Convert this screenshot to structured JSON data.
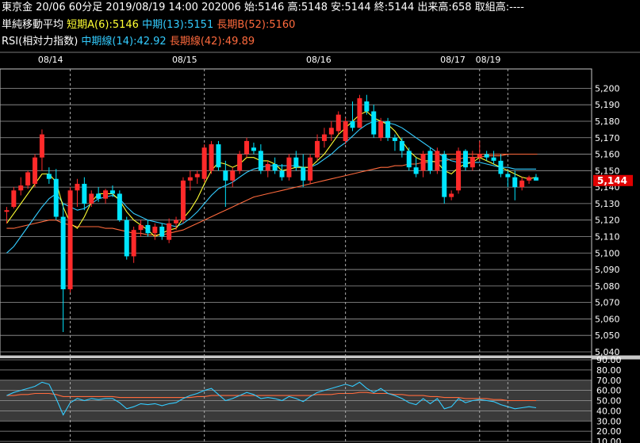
{
  "header": {
    "instrument": "東京金 20/06 60分足",
    "datetime": "2019/08/19 14:00",
    "contract": "202006",
    "open_label": "始:",
    "open": "5146",
    "high_label": "高:",
    "high": "5148",
    "low_label": "安:",
    "low": "5144",
    "close_label": "終:",
    "close": "5144",
    "volume_label": "出来高:",
    "volume": "658",
    "oi_label": "取組高:",
    "oi": "----"
  },
  "ma_legend": {
    "name": "単純移動平均",
    "short": "短期A(6):5146",
    "mid": "中期(13):5151",
    "long": "長期B(52):5160"
  },
  "rsi_legend": {
    "name": "RSI(相対力指数)",
    "mid": "中期線(14):42.92",
    "long": "長期線(42):49.89"
  },
  "colors": {
    "up": "#ff2a2a",
    "down": "#00e5ff",
    "short_ma": "#ffff33",
    "mid_ma": "#33ccff",
    "long_ma": "#ff6a3d",
    "price_tag": "#e00000"
  },
  "chart_data": [
    {
      "type": "candlestick",
      "title": "",
      "x_date_labels": [
        {
          "label": "08/14",
          "index": 6
        },
        {
          "label": "08/15",
          "index": 25
        },
        {
          "label": "08/16",
          "index": 44
        },
        {
          "label": "08/17",
          "index": 63
        },
        {
          "label": "08/19",
          "index": 68
        }
      ],
      "day_separators": [
        9,
        28,
        48,
        67,
        71
      ],
      "ylim": [
        5040,
        5205
      ],
      "y_ticks": [
        5040,
        5050,
        5060,
        5070,
        5080,
        5090,
        5100,
        5110,
        5120,
        5130,
        5140,
        5150,
        5160,
        5170,
        5180,
        5190,
        5200
      ],
      "y_tick_labels": [
        "5,040",
        "5,050",
        "5,060",
        "5,070",
        "5,080",
        "5,090",
        "5,100",
        "5,110",
        "5,120",
        "5,130",
        "5,140",
        "5,150",
        "5,160",
        "5,170",
        "5,180",
        "5,190",
        "5,200"
      ],
      "last_price_label": "5,144",
      "last_price": 5144,
      "candles": [
        {
          "o": 5125,
          "h": 5128,
          "l": 5118,
          "c": 5126
        },
        {
          "o": 5128,
          "h": 5140,
          "l": 5127,
          "c": 5138
        },
        {
          "o": 5138,
          "h": 5146,
          "l": 5135,
          "c": 5141
        },
        {
          "o": 5141,
          "h": 5150,
          "l": 5139,
          "c": 5149
        },
        {
          "o": 5142,
          "h": 5160,
          "l": 5140,
          "c": 5158
        },
        {
          "o": 5158,
          "h": 5175,
          "l": 5150,
          "c": 5172
        },
        {
          "o": 5148,
          "h": 5152,
          "l": 5142,
          "c": 5145
        },
        {
          "o": 5145,
          "h": 5151,
          "l": 5120,
          "c": 5122
        },
        {
          "o": 5122,
          "h": 5130,
          "l": 5052,
          "c": 5078
        },
        {
          "o": 5078,
          "h": 5140,
          "l": 5076,
          "c": 5138
        },
        {
          "o": 5138,
          "h": 5145,
          "l": 5128,
          "c": 5142
        },
        {
          "o": 5142,
          "h": 5146,
          "l": 5126,
          "c": 5130
        },
        {
          "o": 5130,
          "h": 5138,
          "l": 5128,
          "c": 5136
        },
        {
          "o": 5136,
          "h": 5140,
          "l": 5131,
          "c": 5133
        },
        {
          "o": 5133,
          "h": 5139,
          "l": 5130,
          "c": 5138
        },
        {
          "o": 5138,
          "h": 5141,
          "l": 5134,
          "c": 5136
        },
        {
          "o": 5136,
          "h": 5138,
          "l": 5119,
          "c": 5120
        },
        {
          "o": 5120,
          "h": 5122,
          "l": 5096,
          "c": 5098
        },
        {
          "o": 5098,
          "h": 5116,
          "l": 5094,
          "c": 5114
        },
        {
          "o": 5114,
          "h": 5120,
          "l": 5110,
          "c": 5117
        },
        {
          "o": 5117,
          "h": 5120,
          "l": 5110,
          "c": 5112
        },
        {
          "o": 5112,
          "h": 5118,
          "l": 5108,
          "c": 5116
        },
        {
          "o": 5116,
          "h": 5118,
          "l": 5108,
          "c": 5110
        },
        {
          "o": 5108,
          "h": 5121,
          "l": 5106,
          "c": 5118
        },
        {
          "o": 5118,
          "h": 5122,
          "l": 5114,
          "c": 5120
        },
        {
          "o": 5120,
          "h": 5146,
          "l": 5118,
          "c": 5144
        },
        {
          "o": 5144,
          "h": 5150,
          "l": 5138,
          "c": 5146
        },
        {
          "o": 5146,
          "h": 5150,
          "l": 5142,
          "c": 5148
        },
        {
          "o": 5145,
          "h": 5166,
          "l": 5143,
          "c": 5164
        },
        {
          "o": 5150,
          "h": 5168,
          "l": 5148,
          "c": 5166
        },
        {
          "o": 5166,
          "h": 5168,
          "l": 5150,
          "c": 5152
        },
        {
          "o": 5150,
          "h": 5156,
          "l": 5128,
          "c": 5144
        },
        {
          "o": 5144,
          "h": 5152,
          "l": 5140,
          "c": 5150
        },
        {
          "o": 5150,
          "h": 5162,
          "l": 5148,
          "c": 5160
        },
        {
          "o": 5160,
          "h": 5170,
          "l": 5158,
          "c": 5168
        },
        {
          "o": 5164,
          "h": 5167,
          "l": 5160,
          "c": 5162
        },
        {
          "o": 5162,
          "h": 5166,
          "l": 5148,
          "c": 5150
        },
        {
          "o": 5150,
          "h": 5156,
          "l": 5146,
          "c": 5154
        },
        {
          "o": 5154,
          "h": 5158,
          "l": 5148,
          "c": 5150
        },
        {
          "o": 5150,
          "h": 5154,
          "l": 5144,
          "c": 5146
        },
        {
          "o": 5146,
          "h": 5160,
          "l": 5144,
          "c": 5158
        },
        {
          "o": 5158,
          "h": 5162,
          "l": 5150,
          "c": 5152
        },
        {
          "o": 5152,
          "h": 5160,
          "l": 5140,
          "c": 5144
        },
        {
          "o": 5144,
          "h": 5160,
          "l": 5142,
          "c": 5158
        },
        {
          "o": 5158,
          "h": 5172,
          "l": 5156,
          "c": 5168
        },
        {
          "o": 5168,
          "h": 5176,
          "l": 5164,
          "c": 5172
        },
        {
          "o": 5172,
          "h": 5180,
          "l": 5168,
          "c": 5176
        },
        {
          "o": 5174,
          "h": 5186,
          "l": 5172,
          "c": 5184
        },
        {
          "o": 5168,
          "h": 5182,
          "l": 5166,
          "c": 5180
        },
        {
          "o": 5180,
          "h": 5192,
          "l": 5174,
          "c": 5176
        },
        {
          "o": 5176,
          "h": 5196,
          "l": 5176,
          "c": 5194
        },
        {
          "o": 5192,
          "h": 5196,
          "l": 5184,
          "c": 5186
        },
        {
          "o": 5186,
          "h": 5190,
          "l": 5170,
          "c": 5172
        },
        {
          "o": 5170,
          "h": 5182,
          "l": 5168,
          "c": 5180
        },
        {
          "o": 5180,
          "h": 5182,
          "l": 5168,
          "c": 5170
        },
        {
          "o": 5170,
          "h": 5172,
          "l": 5162,
          "c": 5168
        },
        {
          "o": 5168,
          "h": 5170,
          "l": 5158,
          "c": 5162
        },
        {
          "o": 5162,
          "h": 5164,
          "l": 5150,
          "c": 5152
        },
        {
          "o": 5152,
          "h": 5158,
          "l": 5146,
          "c": 5148
        },
        {
          "o": 5150,
          "h": 5162,
          "l": 5146,
          "c": 5160
        },
        {
          "o": 5162,
          "h": 5164,
          "l": 5148,
          "c": 5150
        },
        {
          "o": 5150,
          "h": 5164,
          "l": 5148,
          "c": 5162
        },
        {
          "o": 5160,
          "h": 5162,
          "l": 5130,
          "c": 5134
        },
        {
          "o": 5134,
          "h": 5138,
          "l": 5132,
          "c": 5136
        },
        {
          "o": 5138,
          "h": 5164,
          "l": 5136,
          "c": 5162
        },
        {
          "o": 5162,
          "h": 5163,
          "l": 5150,
          "c": 5152
        },
        {
          "o": 5152,
          "h": 5162,
          "l": 5150,
          "c": 5158
        },
        {
          "o": 5158,
          "h": 5168,
          "l": 5156,
          "c": 5160
        },
        {
          "o": 5160,
          "h": 5162,
          "l": 5156,
          "c": 5158
        },
        {
          "o": 5158,
          "h": 5162,
          "l": 5154,
          "c": 5156
        },
        {
          "o": 5156,
          "h": 5160,
          "l": 5146,
          "c": 5148
        },
        {
          "o": 5148,
          "h": 5150,
          "l": 5140,
          "c": 5146
        },
        {
          "o": 5146,
          "h": 5150,
          "l": 5132,
          "c": 5140
        },
        {
          "o": 5140,
          "h": 5146,
          "l": 5138,
          "c": 5144
        },
        {
          "o": 5144,
          "h": 5147,
          "l": 5142,
          "c": 5146
        },
        {
          "o": 5146,
          "h": 5148,
          "l": 5144,
          "c": 5144
        }
      ],
      "ma_short": [
        5118,
        5124,
        5130,
        5136,
        5142,
        5148,
        5148,
        5143,
        5128,
        5118,
        5115,
        5122,
        5131,
        5136,
        5136,
        5136,
        5132,
        5125,
        5120,
        5117,
        5114,
        5110,
        5112,
        5114,
        5115,
        5121,
        5126,
        5133,
        5142,
        5150,
        5155,
        5154,
        5152,
        5154,
        5158,
        5158,
        5156,
        5156,
        5154,
        5150,
        5151,
        5152,
        5152,
        5152,
        5156,
        5160,
        5166,
        5172,
        5176,
        5180,
        5184,
        5186,
        5182,
        5180,
        5178,
        5174,
        5168,
        5162,
        5158,
        5156,
        5156,
        5155,
        5150,
        5148,
        5152,
        5154,
        5155,
        5158,
        5156,
        5154,
        5152,
        5150,
        5148,
        5146,
        5145,
        5146
      ],
      "ma_mid": [
        5100,
        5104,
        5110,
        5116,
        5122,
        5128,
        5133,
        5136,
        5130,
        5128,
        5126,
        5127,
        5130,
        5133,
        5134,
        5135,
        5133,
        5128,
        5124,
        5122,
        5120,
        5119,
        5118,
        5117,
        5116,
        5118,
        5121,
        5125,
        5130,
        5135,
        5139,
        5141,
        5143,
        5146,
        5149,
        5151,
        5152,
        5153,
        5153,
        5153,
        5153,
        5153,
        5152,
        5152,
        5154,
        5157,
        5160,
        5164,
        5167,
        5171,
        5175,
        5178,
        5180,
        5180,
        5179,
        5178,
        5176,
        5173,
        5170,
        5167,
        5164,
        5161,
        5158,
        5156,
        5155,
        5155,
        5155,
        5155,
        5154,
        5153,
        5152,
        5152,
        5151,
        5151,
        5151,
        5151
      ],
      "ma_long": [
        5115,
        5115,
        5116,
        5117,
        5118,
        5119,
        5120,
        5120,
        5118,
        5117,
        5116,
        5116,
        5116,
        5116,
        5115,
        5115,
        5114,
        5113,
        5112,
        5112,
        5111,
        5111,
        5111,
        5112,
        5113,
        5114,
        5116,
        5118,
        5120,
        5122,
        5124,
        5126,
        5128,
        5130,
        5132,
        5134,
        5135,
        5136,
        5137,
        5138,
        5139,
        5140,
        5141,
        5142,
        5143,
        5144,
        5145,
        5146,
        5147,
        5148,
        5149,
        5150,
        5151,
        5152,
        5152,
        5153,
        5153,
        5154,
        5154,
        5155,
        5155,
        5156,
        5156,
        5157,
        5157,
        5158,
        5158,
        5158,
        5159,
        5159,
        5159,
        5160,
        5160,
        5160,
        5160,
        5160
      ],
      "long_line_b": 5160
    },
    {
      "type": "line",
      "title": "",
      "ylim": [
        10,
        90
      ],
      "y_tick_labels": [
        "90.00",
        "80.00",
        "70.00",
        "60.00",
        "50.00",
        "40.00",
        "30.00",
        "20.00",
        "10.00"
      ],
      "y_ticks": [
        90,
        80,
        70,
        60,
        50,
        40,
        30,
        20,
        10
      ],
      "band_upper": 70,
      "band_lower": 30,
      "series": [
        {
          "name": "中期線(14)",
          "values": [
            55,
            58,
            60,
            62,
            64,
            68,
            66,
            52,
            36,
            48,
            52,
            50,
            52,
            51,
            52,
            52,
            48,
            42,
            44,
            47,
            46,
            47,
            45,
            47,
            48,
            52,
            55,
            57,
            60,
            62,
            56,
            50,
            52,
            55,
            58,
            56,
            52,
            53,
            52,
            50,
            54,
            52,
            49,
            54,
            58,
            60,
            62,
            64,
            66,
            64,
            68,
            62,
            58,
            62,
            57,
            55,
            52,
            48,
            46,
            52,
            47,
            52,
            42,
            44,
            52,
            48,
            50,
            51,
            50,
            49,
            46,
            44,
            42,
            43,
            44,
            43
          ]
        },
        {
          "name": "長期線(42)",
          "values": [
            55,
            55,
            56,
            56,
            57,
            57,
            57,
            56,
            54,
            54,
            54,
            54,
            54,
            54,
            54,
            54,
            53,
            53,
            53,
            53,
            53,
            53,
            53,
            53,
            53,
            53,
            53,
            54,
            54,
            55,
            55,
            55,
            55,
            55,
            55,
            55,
            55,
            55,
            55,
            55,
            55,
            55,
            55,
            55,
            56,
            56,
            56,
            57,
            57,
            57,
            58,
            58,
            57,
            57,
            57,
            56,
            56,
            55,
            55,
            55,
            54,
            54,
            53,
            53,
            53,
            52,
            52,
            52,
            52,
            51,
            51,
            50,
            50,
            50,
            50,
            50
          ]
        }
      ]
    }
  ]
}
